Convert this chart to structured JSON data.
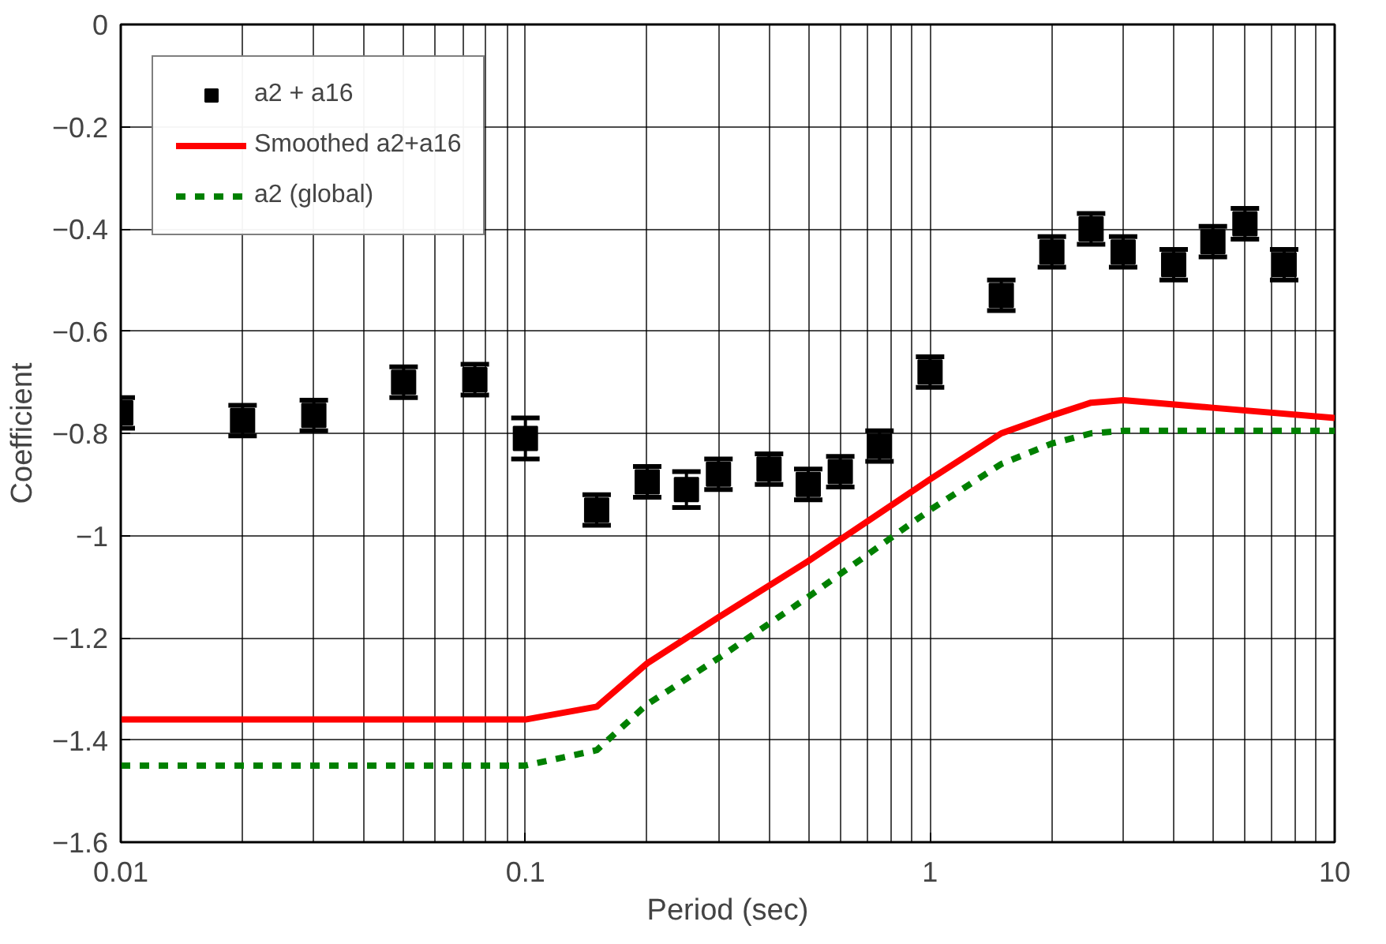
{
  "chart_data": {
    "type": "scatter",
    "xlabel": "Period (sec)",
    "ylabel": "Coefficient",
    "log": "x",
    "xlim": [
      0.01,
      10
    ],
    "xticks": [
      0.01,
      0.1,
      1,
      10
    ],
    "ylim": [
      -1.6,
      0
    ],
    "yticks": [
      -1.6,
      -1.4,
      -1.2,
      -1,
      -0.8,
      -0.6,
      -0.4,
      -0.2,
      0
    ],
    "grid": true,
    "legend": "top left",
    "series": [
      {
        "name": "a2 + a16",
        "marker": "square",
        "color": "#000000",
        "x": [
          0.01,
          0.02,
          0.03,
          0.05,
          0.075,
          0.1,
          0.15,
          0.2,
          0.25,
          0.3,
          0.4,
          0.5,
          0.6,
          0.75,
          1,
          1.5,
          2,
          2.5,
          3,
          4,
          5,
          6,
          7.5
        ],
        "values": [
          -0.76,
          -0.775,
          -0.765,
          -0.7,
          -0.695,
          -0.81,
          -0.95,
          -0.895,
          -0.91,
          -0.88,
          -0.87,
          -0.9,
          -0.875,
          -0.825,
          -0.68,
          -0.53,
          -0.445,
          -0.4,
          -0.445,
          -0.47,
          -0.425,
          -0.39,
          -0.47
        ],
        "errors": [
          0.03,
          0.03,
          0.03,
          0.03,
          0.03,
          0.04,
          0.03,
          0.03,
          0.035,
          0.03,
          0.03,
          0.03,
          0.03,
          0.03,
          0.03,
          0.03,
          0.03,
          0.03,
          0.03,
          0.03,
          0.03,
          0.03,
          0.03
        ]
      },
      {
        "name": "Smoothed a2+a16",
        "type": "line",
        "line_style": "solid",
        "color": "#ff0000",
        "x": [
          0.01,
          0.1,
          0.15,
          0.2,
          0.3,
          0.5,
          1,
          1.5,
          2,
          2.5,
          3,
          5,
          10
        ],
        "values": [
          -1.36,
          -1.36,
          -1.335,
          -1.25,
          -1.16,
          -1.05,
          -0.89,
          -0.8,
          -0.765,
          -0.74,
          -0.735,
          -0.75,
          -0.77
        ]
      },
      {
        "name": "a2 (global)",
        "type": "line",
        "line_style": "dashed",
        "color": "#008000",
        "x": [
          0.01,
          0.1,
          0.15,
          0.2,
          0.3,
          0.5,
          1,
          1.5,
          2,
          2.5,
          3,
          10
        ],
        "values": [
          -1.45,
          -1.45,
          -1.42,
          -1.33,
          -1.24,
          -1.12,
          -0.95,
          -0.86,
          -0.82,
          -0.8,
          -0.795,
          -0.795
        ]
      }
    ]
  }
}
